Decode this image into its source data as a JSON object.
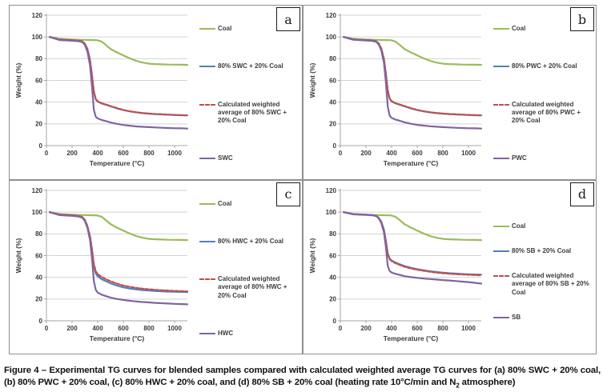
{
  "figure": {
    "caption": {
      "before_sub": "Figure 4 – Experimental TG curves for blended samples compared with calculated weighted average TG curves for (a) 80% SWC + 20% coal, (b) 80% PWC + 20% coal, (c) 80% HWC + 20% coal, and (d) 80% SB + 20% coal (heating rate 10°C/min and N",
      "sub": "2",
      "after_sub": " atmosphere)"
    },
    "accent_colors": {
      "coal_green": "#9bbb59",
      "blend_blue": "#4f81bd",
      "calc_red": "#c0504d",
      "pure_purple": "#8064a2",
      "gridline": "#d3d3d3",
      "axis": "#a6a6a6",
      "tick_text": "#3a3a3a"
    }
  },
  "chart_data": [
    {
      "panel_label": "a",
      "type": "line",
      "xlabel": "Temperature (°C)",
      "ylabel": "Weight (%)",
      "xlim": [
        0,
        1100
      ],
      "ylim": [
        0,
        120
      ],
      "xticks": [
        0,
        200,
        400,
        600,
        800,
        1000
      ],
      "yticks": [
        0,
        20,
        40,
        60,
        80,
        100,
        120
      ],
      "grid": "horizontal",
      "legend_position": "right",
      "x": [
        25,
        100,
        150,
        200,
        250,
        280,
        300,
        320,
        340,
        355,
        370,
        385,
        400,
        430,
        460,
        500,
        550,
        600,
        650,
        700,
        750,
        800,
        850,
        900,
        950,
        1000,
        1050,
        1100
      ],
      "series": [
        {
          "name": "Coal",
          "color": "#9bbb59",
          "style": "solid",
          "values": [
            100,
            98.3,
            97.9,
            97.6,
            97.4,
            97.3,
            97.3,
            97.2,
            97.2,
            97.1,
            97.1,
            97.0,
            96.9,
            95.8,
            93.0,
            89.0,
            85.8,
            83.0,
            80.3,
            78.0,
            76.4,
            75.4,
            75.0,
            74.8,
            74.6,
            74.5,
            74.4,
            74.3
          ]
        },
        {
          "name": "80% SWC + 20% Coal",
          "color": "#4f81bd",
          "style": "solid",
          "values": [
            100,
            97.6,
            97.2,
            96.9,
            96.5,
            95.8,
            93.5,
            88.5,
            78.0,
            64.0,
            49.0,
            42.5,
            40.5,
            38.8,
            37.8,
            36.2,
            34.3,
            32.7,
            31.5,
            30.6,
            29.9,
            29.4,
            29.0,
            28.7,
            28.4,
            28.2,
            28.0,
            27.8
          ]
        },
        {
          "name": "Calculated weighted average of 80% SWC + 20% Coal",
          "color": "#c0504d",
          "style": "dashed",
          "values": [
            100,
            97.7,
            97.3,
            97.0,
            96.6,
            96.0,
            93.8,
            89.0,
            79.0,
            65.5,
            50.0,
            43.0,
            40.8,
            39.0,
            38.0,
            36.4,
            34.5,
            32.8,
            31.6,
            30.7,
            30.0,
            29.5,
            29.1,
            28.8,
            28.5,
            28.2,
            28.0,
            27.8
          ]
        },
        {
          "name": "SWC",
          "color": "#8064a2",
          "style": "solid",
          "values": [
            100,
            97.2,
            96.8,
            96.5,
            96.1,
            95.3,
            92.6,
            86.5,
            74.0,
            55.0,
            33.0,
            26.5,
            25.0,
            23.6,
            22.7,
            21.3,
            20.0,
            19.0,
            18.3,
            17.7,
            17.3,
            17.0,
            16.7,
            16.4,
            16.2,
            16.0,
            15.9,
            15.7
          ]
        }
      ]
    },
    {
      "panel_label": "b",
      "type": "line",
      "xlabel": "Temperature (°C)",
      "ylabel": "Weight (%)",
      "xlim": [
        0,
        1100
      ],
      "ylim": [
        0,
        120
      ],
      "xticks": [
        0,
        200,
        400,
        600,
        800,
        1000
      ],
      "yticks": [
        0,
        20,
        40,
        60,
        80,
        100,
        120
      ],
      "grid": "horizontal",
      "legend_position": "right",
      "x": [
        25,
        100,
        150,
        200,
        250,
        280,
        300,
        320,
        340,
        355,
        370,
        385,
        400,
        430,
        460,
        500,
        550,
        600,
        650,
        700,
        750,
        800,
        850,
        900,
        950,
        1000,
        1050,
        1100
      ],
      "series": [
        {
          "name": "Coal",
          "color": "#9bbb59",
          "style": "solid",
          "values": [
            100,
            98.3,
            97.9,
            97.6,
            97.4,
            97.3,
            97.3,
            97.2,
            97.2,
            97.1,
            97.1,
            97.0,
            96.9,
            95.8,
            93.0,
            89.0,
            85.8,
            83.0,
            80.3,
            78.0,
            76.4,
            75.4,
            75.0,
            74.8,
            74.6,
            74.5,
            74.4,
            74.3
          ]
        },
        {
          "name": "80% PWC + 20% Coal",
          "color": "#4f81bd",
          "style": "solid",
          "values": [
            100,
            97.8,
            97.4,
            97.1,
            96.7,
            96.0,
            93.8,
            89.0,
            79.5,
            66.0,
            50.0,
            43.0,
            40.8,
            38.9,
            37.8,
            36.2,
            34.3,
            32.7,
            31.5,
            30.6,
            29.9,
            29.4,
            29.0,
            28.7,
            28.4,
            28.2,
            28.0,
            27.8
          ]
        },
        {
          "name": "Calculated weighted average of 80% PWC + 20% Coal",
          "color": "#c0504d",
          "style": "dashed",
          "values": [
            100,
            97.8,
            97.4,
            97.1,
            96.7,
            96.1,
            94.0,
            89.3,
            80.0,
            67.0,
            51.0,
            43.4,
            41.0,
            39.1,
            38.0,
            36.4,
            34.5,
            32.8,
            31.6,
            30.7,
            30.0,
            29.5,
            29.1,
            28.8,
            28.5,
            28.2,
            28.0,
            27.8
          ]
        },
        {
          "name": "PWC",
          "color": "#8064a2",
          "style": "solid",
          "values": [
            100,
            97.4,
            97.0,
            96.7,
            96.3,
            95.5,
            93.0,
            87.5,
            76.5,
            59.0,
            36.0,
            27.5,
            25.5,
            24.0,
            23.0,
            21.5,
            20.1,
            19.1,
            18.4,
            17.8,
            17.4,
            17.0,
            16.7,
            16.4,
            16.2,
            16.0,
            15.9,
            15.7
          ]
        }
      ]
    },
    {
      "panel_label": "c",
      "type": "line",
      "xlabel": "Temperature (°C)",
      "ylabel": "Weight (%)",
      "xlim": [
        0,
        1100
      ],
      "ylim": [
        0,
        120
      ],
      "xticks": [
        0,
        200,
        400,
        600,
        800,
        1000
      ],
      "yticks": [
        0,
        20,
        40,
        60,
        80,
        100,
        120
      ],
      "grid": "horizontal",
      "legend_position": "right",
      "x": [
        25,
        100,
        150,
        200,
        250,
        280,
        300,
        320,
        340,
        355,
        370,
        385,
        400,
        430,
        460,
        500,
        550,
        600,
        650,
        700,
        750,
        800,
        850,
        900,
        950,
        1000,
        1050,
        1100
      ],
      "series": [
        {
          "name": "Coal",
          "color": "#9bbb59",
          "style": "solid",
          "values": [
            100,
            98.3,
            97.9,
            97.6,
            97.4,
            97.3,
            97.3,
            97.2,
            97.2,
            97.1,
            97.1,
            97.0,
            96.9,
            95.8,
            93.0,
            89.0,
            85.8,
            83.0,
            80.3,
            78.0,
            76.4,
            75.4,
            75.0,
            74.8,
            74.6,
            74.5,
            74.4,
            74.3
          ]
        },
        {
          "name": "80% HWC + 20% Coal",
          "color": "#4f81bd",
          "style": "solid",
          "values": [
            100,
            97.7,
            97.3,
            97.0,
            96.3,
            95.3,
            92.3,
            86.5,
            77.0,
            65.0,
            50.5,
            43.5,
            41.0,
            38.3,
            36.7,
            34.5,
            32.4,
            30.8,
            29.7,
            28.9,
            28.3,
            27.8,
            27.4,
            27.1,
            26.9,
            26.7,
            26.6,
            26.5
          ]
        },
        {
          "name": "Calculated weighted average of 80% HWC + 20% Coal",
          "color": "#c0504d",
          "style": "dashed",
          "values": [
            100,
            97.8,
            97.4,
            97.1,
            96.5,
            95.6,
            92.8,
            87.2,
            78.0,
            66.5,
            52.5,
            45.5,
            43.0,
            40.3,
            38.6,
            36.4,
            34.2,
            32.5,
            31.3,
            30.3,
            29.6,
            29.0,
            28.5,
            28.1,
            27.8,
            27.5,
            27.3,
            27.1
          ]
        },
        {
          "name": "HWC",
          "color": "#8064a2",
          "style": "solid",
          "values": [
            100,
            97.3,
            96.9,
            96.6,
            95.9,
            94.9,
            91.8,
            85.5,
            74.5,
            58.0,
            36.5,
            28.5,
            26.0,
            24.1,
            22.9,
            21.4,
            20.1,
            19.2,
            18.4,
            17.8,
            17.3,
            16.9,
            16.5,
            16.2,
            15.9,
            15.6,
            15.4,
            15.2
          ]
        }
      ]
    },
    {
      "panel_label": "d",
      "type": "line",
      "xlabel": "Temperature (°C)",
      "ylabel": "Weight (%)",
      "xlim": [
        0,
        1100
      ],
      "ylim": [
        0,
        120
      ],
      "xticks": [
        0,
        200,
        400,
        600,
        800,
        1000
      ],
      "yticks": [
        0,
        20,
        40,
        60,
        80,
        100,
        120
      ],
      "grid": "horizontal",
      "legend_position": "right",
      "x": [
        25,
        100,
        150,
        200,
        250,
        280,
        300,
        320,
        340,
        355,
        370,
        385,
        400,
        430,
        460,
        500,
        550,
        600,
        650,
        700,
        750,
        800,
        850,
        900,
        950,
        1000,
        1050,
        1100
      ],
      "series": [
        {
          "name": "Coal",
          "color": "#9bbb59",
          "style": "solid",
          "values": [
            100,
            98.3,
            97.9,
            97.6,
            97.4,
            97.3,
            97.3,
            97.2,
            97.2,
            97.1,
            97.1,
            97.0,
            96.9,
            95.8,
            93.0,
            89.0,
            85.8,
            83.0,
            80.3,
            78.0,
            76.4,
            75.4,
            75.0,
            74.8,
            74.6,
            74.5,
            74.4,
            74.3
          ]
        },
        {
          "name": "80% SB + 20% Coal",
          "color": "#4f81bd",
          "style": "solid",
          "values": [
            100,
            98.2,
            97.9,
            97.7,
            97.3,
            96.6,
            94.8,
            91.0,
            84.0,
            74.0,
            62.0,
            57.2,
            55.6,
            53.6,
            52.2,
            50.4,
            48.8,
            47.5,
            46.5,
            45.6,
            44.9,
            44.3,
            43.8,
            43.4,
            43.1,
            42.8,
            42.6,
            42.4
          ]
        },
        {
          "name": "Calculated weighted average of 80% SB + 20% Coal",
          "color": "#c0504d",
          "style": "dashed",
          "values": [
            100,
            98.2,
            97.9,
            97.6,
            97.2,
            96.5,
            94.6,
            90.7,
            83.5,
            73.5,
            61.3,
            56.6,
            55.0,
            53.0,
            51.6,
            49.8,
            48.2,
            47.0,
            46.0,
            45.1,
            44.4,
            43.8,
            43.3,
            42.9,
            42.6,
            42.3,
            42.1,
            41.9
          ]
        },
        {
          "name": "SB",
          "color": "#8064a2",
          "style": "solid",
          "values": [
            100,
            98.0,
            97.7,
            97.5,
            97.1,
            96.3,
            94.2,
            89.8,
            81.5,
            68.5,
            50.5,
            45.8,
            44.5,
            43.2,
            42.3,
            41.1,
            40.2,
            39.5,
            38.9,
            38.4,
            38.0,
            37.5,
            37.1,
            36.6,
            36.1,
            35.6,
            35.0,
            34.2
          ]
        }
      ]
    }
  ]
}
